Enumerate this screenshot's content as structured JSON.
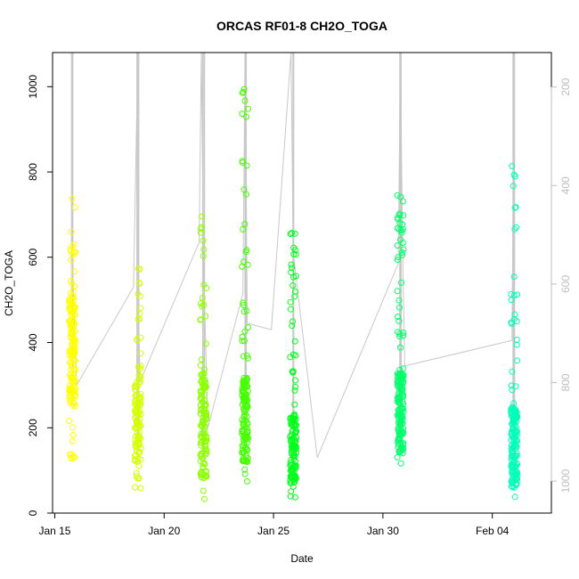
{
  "chart_data": {
    "type": "scatter",
    "title": "ORCAS RF01-8 CH2O_TOGA",
    "xlabel": "Date",
    "ylabel": "CH2O_TOGA",
    "x_ticks": [
      "Jan 15",
      "Jan 20",
      "Jan 25",
      "Jan 30",
      "Feb 04"
    ],
    "y_ticks": [
      "0",
      "200",
      "400",
      "600",
      "800",
      "1000"
    ],
    "y_right_ticks": [
      "200",
      "400",
      "600",
      "800",
      "1000"
    ],
    "xlim_days": [
      14.9,
      37.7
    ],
    "ylim": [
      0,
      1080
    ],
    "y_right_lim": [
      1065,
      130
    ],
    "grid": false,
    "legend": "none",
    "colors": {
      "points": [
        "#ffff00",
        "#d4ff00",
        "#8cff00",
        "#44ff00",
        "#00ff1a",
        "#00ff6a",
        "#00ffb8"
      ],
      "track": "#c8c8c8",
      "right_axis": "#bdbdbd"
    },
    "series": [
      {
        "day": 15.8,
        "y_range": [
          118,
          740
        ],
        "dense": [
          250,
          520
        ],
        "n": 160,
        "color": "#ffff00"
      },
      {
        "day": 18.8,
        "y_range": [
          52,
          595
        ],
        "dense": [
          120,
          320
        ],
        "n": 120,
        "color": "#d4ff00"
      },
      {
        "day": 21.8,
        "y_range": [
          28,
          708
        ],
        "dense": [
          80,
          320
        ],
        "n": 140,
        "color": "#8cff00"
      },
      {
        "day": 23.7,
        "y_range": [
          62,
          1040
        ],
        "dense": [
          120,
          320
        ],
        "n": 150,
        "color": "#44ff00"
      },
      {
        "day": 25.9,
        "y_range": [
          28,
          665
        ],
        "dense": [
          70,
          230
        ],
        "n": 140,
        "color": "#00ff1a"
      },
      {
        "day": 30.8,
        "y_range": [
          88,
          760
        ],
        "dense": [
          140,
          330
        ],
        "n": 170,
        "color": "#00ff6a"
      },
      {
        "day": 36.0,
        "y_range": [
          35,
          838
        ],
        "dense": [
          60,
          250
        ],
        "n": 170,
        "color": "#00ffb8"
      }
    ],
    "track_points": [
      [
        15.8,
        1080
      ],
      [
        15.8,
        600
      ],
      [
        16.0,
        300
      ],
      [
        18.6,
        530
      ],
      [
        18.8,
        1080
      ],
      [
        18.8,
        540
      ],
      [
        18.9,
        308
      ],
      [
        21.6,
        635
      ],
      [
        21.7,
        1080
      ],
      [
        21.8,
        590
      ],
      [
        22.0,
        200
      ],
      [
        23.6,
        515
      ],
      [
        23.7,
        1080
      ],
      [
        23.8,
        445
      ],
      [
        24.9,
        430
      ],
      [
        25.8,
        1080
      ],
      [
        25.9,
        610
      ],
      [
        27.0,
        130
      ],
      [
        30.7,
        585
      ],
      [
        30.8,
        1080
      ],
      [
        30.9,
        610
      ],
      [
        31.0,
        345
      ],
      [
        35.9,
        405
      ],
      [
        36.0,
        1080
      ],
      [
        36.0,
        610
      ]
    ]
  }
}
